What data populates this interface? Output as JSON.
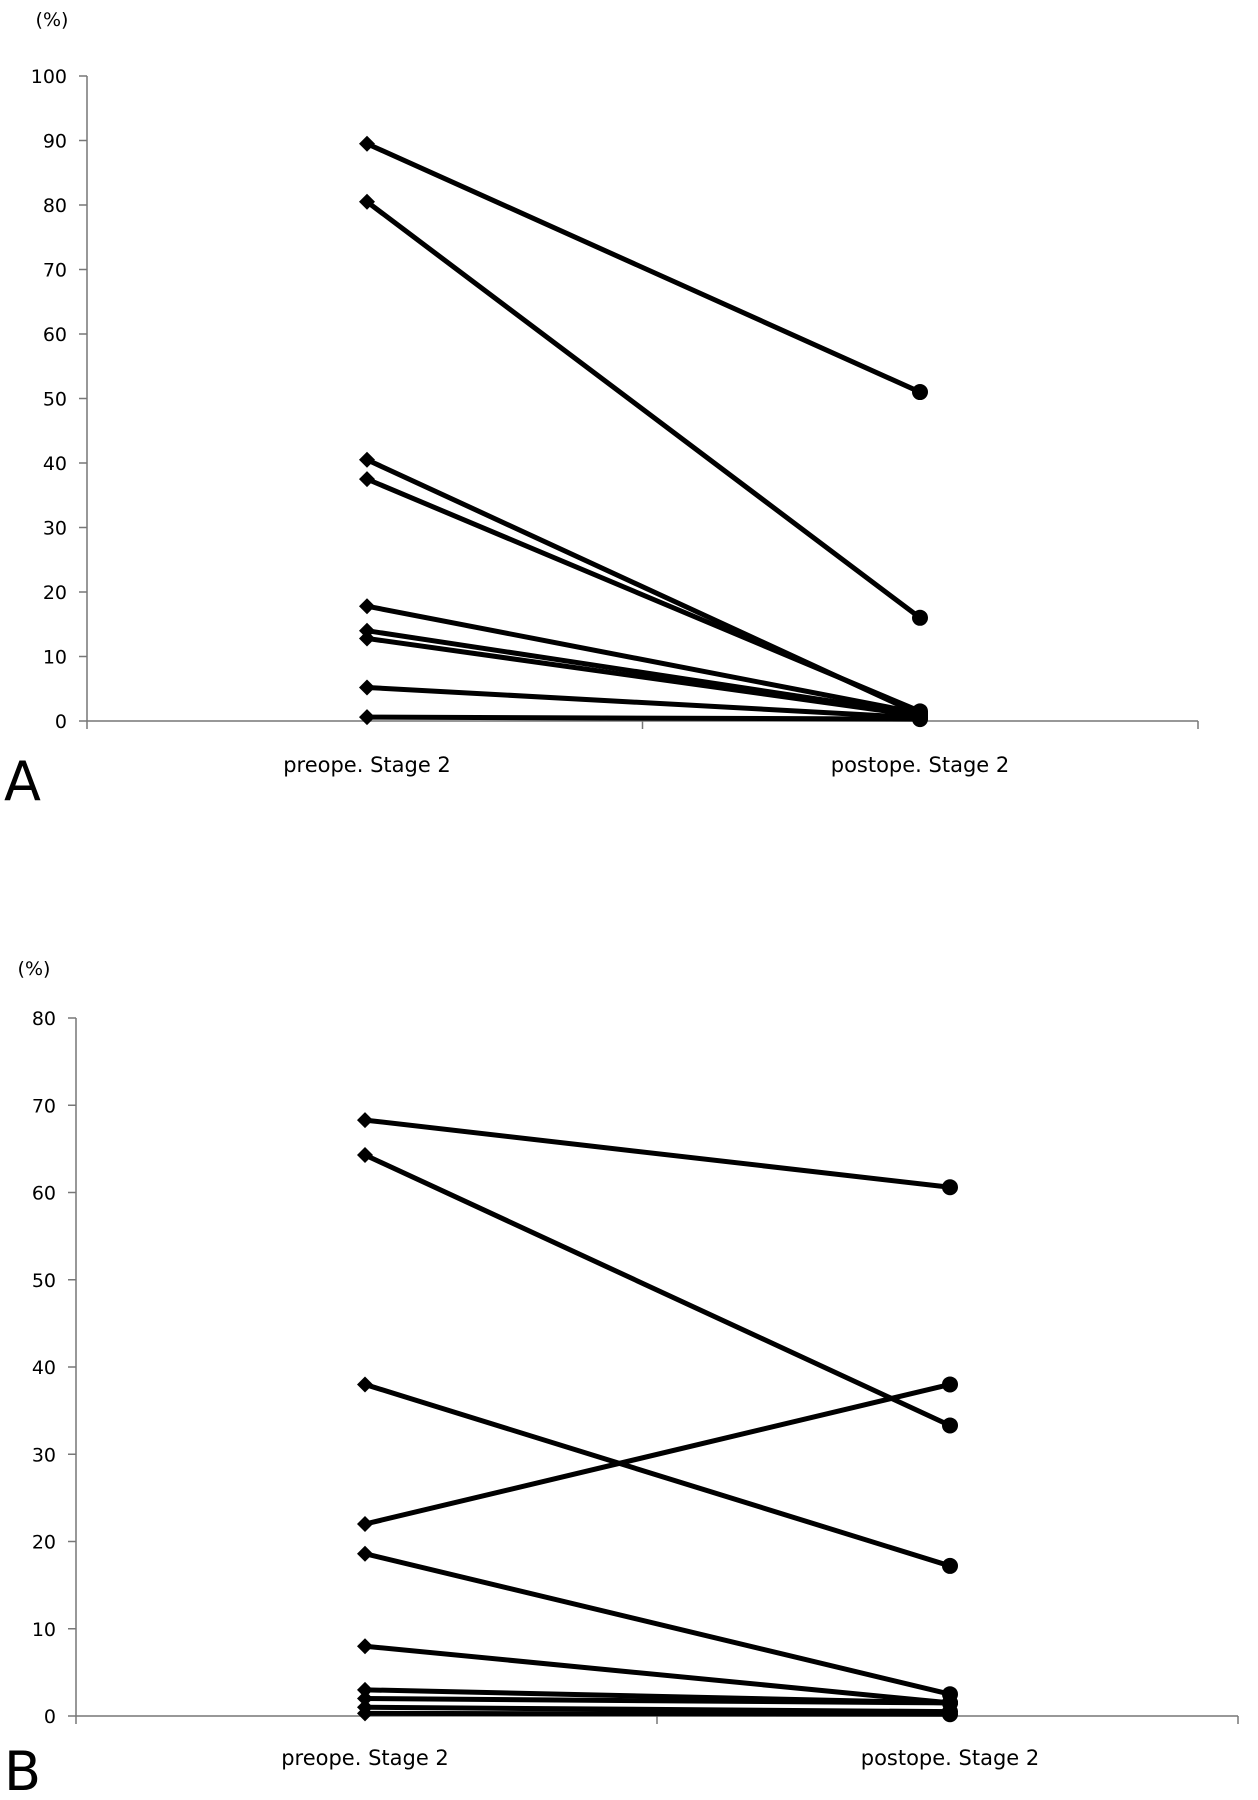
{
  "chart_data": [
    {
      "panel": "A",
      "type": "line",
      "unit_label": "(%)",
      "categories": [
        "preope. Stage 2",
        "postope. Stage 2"
      ],
      "ylim": [
        0,
        100
      ],
      "yticks": [
        0,
        10,
        20,
        30,
        40,
        50,
        60,
        70,
        80,
        90,
        100
      ],
      "markers": [
        "diamond",
        "circle"
      ],
      "grid": false,
      "series": [
        {
          "values": [
            89.5,
            51.0
          ]
        },
        {
          "values": [
            80.5,
            16.0
          ]
        },
        {
          "values": [
            40.5,
            1.0
          ]
        },
        {
          "values": [
            37.5,
            1.5
          ]
        },
        {
          "values": [
            17.8,
            1.2
          ]
        },
        {
          "values": [
            14.0,
            1.0
          ]
        },
        {
          "values": [
            12.8,
            0.8
          ]
        },
        {
          "values": [
            5.2,
            0.5
          ]
        },
        {
          "values": [
            0.6,
            0.3
          ]
        }
      ]
    },
    {
      "panel": "B",
      "type": "line",
      "unit_label": "(%)",
      "categories": [
        "preope. Stage 2",
        "postope. Stage 2"
      ],
      "ylim": [
        0,
        80
      ],
      "yticks": [
        0,
        10,
        20,
        30,
        40,
        50,
        60,
        70,
        80
      ],
      "markers": [
        "diamond",
        "circle"
      ],
      "grid": false,
      "series": [
        {
          "values": [
            68.3,
            60.6
          ]
        },
        {
          "values": [
            64.3,
            33.3
          ]
        },
        {
          "values": [
            38.0,
            17.2
          ]
        },
        {
          "values": [
            22.0,
            38.0
          ]
        },
        {
          "values": [
            18.6,
            2.5
          ]
        },
        {
          "values": [
            8.0,
            1.5
          ]
        },
        {
          "values": [
            3.0,
            1.5
          ]
        },
        {
          "values": [
            2.0,
            1.5
          ]
        },
        {
          "values": [
            1.0,
            0.5
          ]
        },
        {
          "values": [
            0.3,
            0.2
          ]
        }
      ]
    }
  ]
}
